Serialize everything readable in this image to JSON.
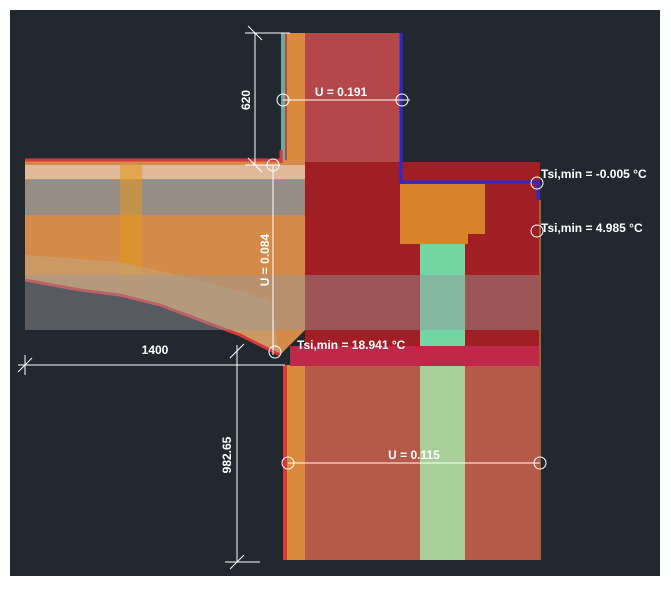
{
  "labels": {
    "dim_top": "620",
    "u_top": "U = 0.191",
    "u_left": "U = 0.084",
    "tsi_top_right": "Tsi,min = -0.005 °C",
    "tsi_mid_right": "Tsi,min = 4.985 °C",
    "dim_left": "1400",
    "tsi_corner": "Tsi,min = 18.941 °C",
    "dim_bottom": "982.65",
    "u_bottom": "U = 0.115"
  }
}
